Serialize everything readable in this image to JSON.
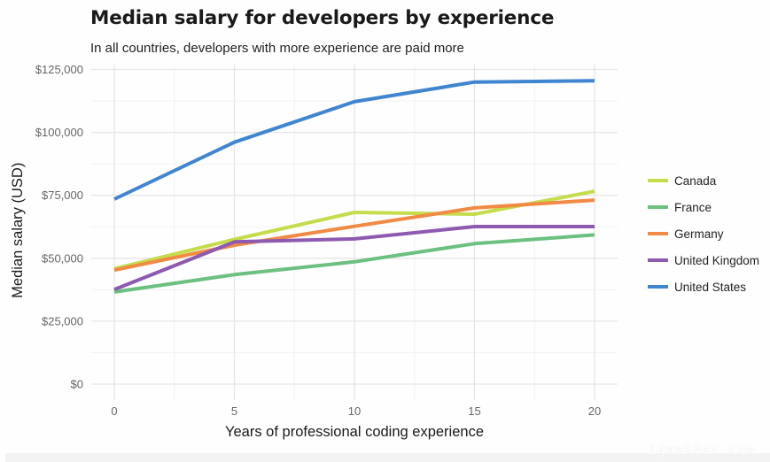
{
  "chart_data": {
    "type": "line",
    "title": "Median salary for developers by experience",
    "subtitle": "In all countries, developers with more experience are paid more",
    "xlabel": "Years of professional coding experience",
    "ylabel": "Median salary (USD)",
    "x": [
      0,
      5,
      10,
      15,
      20
    ],
    "xlim": [
      -1.5,
      21
    ],
    "ylim": [
      0,
      125000
    ],
    "xticks": [
      0,
      5,
      10,
      15,
      20
    ],
    "xtick_labels": [
      "0",
      "5",
      "10",
      "15",
      "20"
    ],
    "yticks": [
      0,
      25000,
      50000,
      75000,
      100000,
      125000
    ],
    "ytick_labels": [
      "$0",
      "$25,000",
      "$50,000",
      "$75,000",
      "$100,000",
      "$125,000"
    ],
    "grid": true,
    "legend_position": "right",
    "series": [
      {
        "name": "Canada",
        "color": "#c5dc4b",
        "values": [
          45800,
          57500,
          68200,
          67500,
          76600
        ]
      },
      {
        "name": "France",
        "color": "#6cc080",
        "values": [
          36600,
          43500,
          48600,
          55800,
          59300
        ]
      },
      {
        "name": "Germany",
        "color": "#f08a44",
        "values": [
          45300,
          55200,
          62700,
          70000,
          73100
        ]
      },
      {
        "name": "United Kingdom",
        "color": "#8e5ab0",
        "values": [
          37600,
          56500,
          57700,
          62600,
          62600
        ]
      },
      {
        "name": "United States",
        "color": "#3f85d0",
        "values": [
          73500,
          96100,
          112200,
          120000,
          120500
        ]
      }
    ]
  },
  "watermark": "igeekbar.com"
}
